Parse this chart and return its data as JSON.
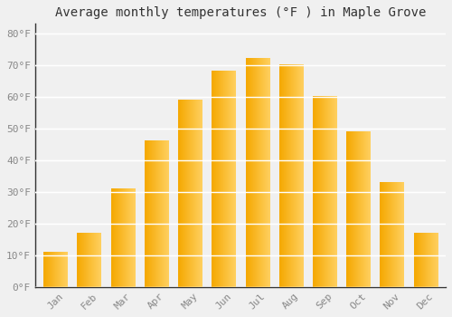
{
  "title": "Average monthly temperatures (°F ) in Maple Grove",
  "months": [
    "Jan",
    "Feb",
    "Mar",
    "Apr",
    "May",
    "Jun",
    "Jul",
    "Aug",
    "Sep",
    "Oct",
    "Nov",
    "Dec"
  ],
  "values": [
    11,
    17,
    31,
    46,
    59,
    68,
    72,
    70,
    60,
    49,
    33,
    17
  ],
  "bar_color_left": "#F5A800",
  "bar_color_right": "#FFD060",
  "ylim": [
    0,
    83
  ],
  "yticks": [
    0,
    10,
    20,
    30,
    40,
    50,
    60,
    70,
    80
  ],
  "ytick_labels": [
    "0°F",
    "10°F",
    "20°F",
    "30°F",
    "40°F",
    "50°F",
    "60°F",
    "70°F",
    "80°F"
  ],
  "background_color": "#F0F0F0",
  "grid_color": "#FFFFFF",
  "title_fontsize": 10,
  "tick_fontsize": 8,
  "tick_color": "#888888",
  "spine_color": "#333333"
}
